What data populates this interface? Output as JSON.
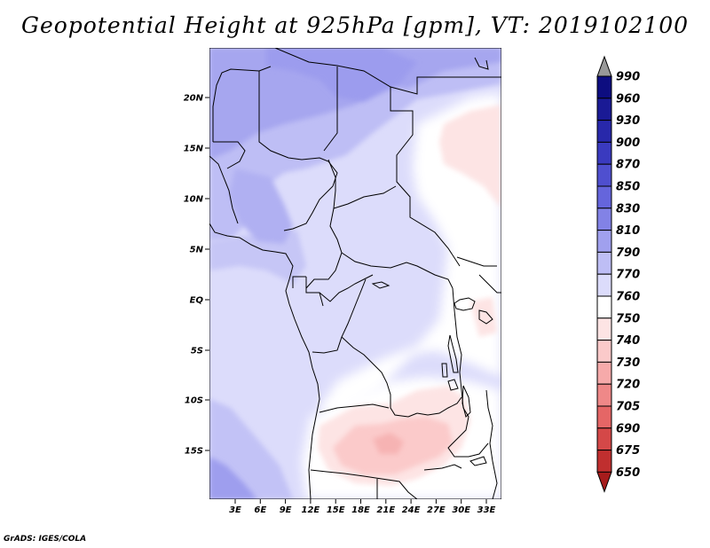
{
  "title": "Geopotential Height at 925hPa [gpm], VT: 2019102100",
  "credit": "GrADS: IGES/COLA",
  "map": {
    "lat_labels": [
      "20N",
      "15N",
      "10N",
      "5N",
      "EQ",
      "5S",
      "10S",
      "15S"
    ],
    "lon_labels": [
      "3E",
      "6E",
      "9E",
      "12E",
      "15E",
      "18E",
      "21E",
      "24E",
      "27E",
      "30E",
      "33E"
    ]
  },
  "colorbar": {
    "levels": [
      {
        "label": "990",
        "color": "#0d0d80"
      },
      {
        "label": "960",
        "color": "#1a1a95"
      },
      {
        "label": "930",
        "color": "#2828aa"
      },
      {
        "label": "900",
        "color": "#3a3abf"
      },
      {
        "label": "870",
        "color": "#4f4fcf"
      },
      {
        "label": "850",
        "color": "#6565dc"
      },
      {
        "label": "830",
        "color": "#8282e6"
      },
      {
        "label": "810",
        "color": "#a0a0ee"
      },
      {
        "label": "790",
        "color": "#bebef5"
      },
      {
        "label": "770",
        "color": "#dcdcfb"
      },
      {
        "label": "760",
        "color": "#ffffff"
      },
      {
        "label": "750",
        "color": "#fde4e4"
      },
      {
        "label": "740",
        "color": "#fbcaca"
      },
      {
        "label": "730",
        "color": "#f6aaaa"
      },
      {
        "label": "720",
        "color": "#ef8888"
      },
      {
        "label": "705",
        "color": "#e56666"
      },
      {
        "label": "690",
        "color": "#d44848"
      },
      {
        "label": "675",
        "color": "#c02f2f"
      },
      {
        "label": "650",
        "color": "#a61c1c"
      }
    ],
    "top_arrow_color": "#999999"
  }
}
